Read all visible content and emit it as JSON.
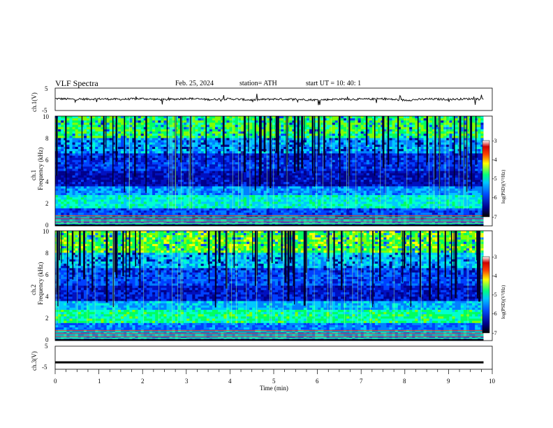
{
  "header": {
    "title": "VLF  Spectra",
    "date": "Feb. 25, 2024",
    "station": "station= ATH",
    "start": "start  UT  =   10: 40: 1"
  },
  "colors": {
    "bg": "#ffffff",
    "axis": "#000000",
    "cb_ticks": "#000000"
  },
  "chart_data": [
    {
      "type": "line",
      "ylabel": "ch.1(V)",
      "ylim": [
        -5,
        5
      ],
      "yticks": [
        "5",
        "-5"
      ],
      "x": [
        0,
        0.5,
        1,
        1.5,
        2,
        2.5,
        3,
        3.5,
        4,
        4.5,
        5,
        5.5,
        6,
        6.5,
        7,
        7.5,
        8,
        8.5,
        9,
        9.5,
        9.8
      ],
      "values": [
        0.3,
        0.0,
        0.2,
        0.0,
        0.3,
        -0.2,
        0.4,
        -0.1,
        0.2,
        -0.3,
        0.1,
        0.0,
        -0.3,
        0.1,
        0.0,
        0.2,
        -0.4,
        0.1,
        0.0,
        0.2,
        0.1
      ]
    },
    {
      "type": "heatmap",
      "ylabel": "ch.1\nFrequency  (kHz)",
      "ylabel_top": "ch.1",
      "ylabel_bottom": "Frequency  (kHz)",
      "ylim": [
        0,
        10
      ],
      "yticks": [
        "10",
        "8",
        "6",
        "4",
        "2",
        "0"
      ],
      "colorbar_label": "log(PSD)(V²/Hz)",
      "colorbar_ticks": [
        "-3",
        "-4",
        "-5",
        "-6",
        "-7"
      ],
      "colorbar_range": [
        -7,
        -3
      ]
    },
    {
      "type": "heatmap",
      "ylabel": "ch.2\nFrequency  (kHz)",
      "ylabel_top": "ch.2",
      "ylabel_bottom": "Frequency  (kHz)",
      "ylim": [
        0,
        10
      ],
      "yticks": [
        "10",
        "8",
        "6",
        "4",
        "2",
        "0"
      ],
      "colorbar_label": "log(PSD)(V²/Hz)",
      "colorbar_ticks": [
        "-3",
        "-4",
        "-5",
        "-6",
        "-7"
      ],
      "colorbar_range": [
        -7,
        -3
      ]
    },
    {
      "type": "line",
      "ylabel": "ch.3(V)",
      "ylim": [
        -5,
        5
      ],
      "yticks": [
        "5",
        "-5"
      ],
      "x": [
        0,
        9.8
      ],
      "values": [
        -2,
        -2
      ]
    }
  ],
  "xaxis": {
    "label": "Time  (min)",
    "xlim": [
      0,
      10
    ],
    "ticks": [
      "0",
      "1",
      "2",
      "3",
      "4",
      "5",
      "6",
      "7",
      "8",
      "9",
      "10"
    ]
  }
}
